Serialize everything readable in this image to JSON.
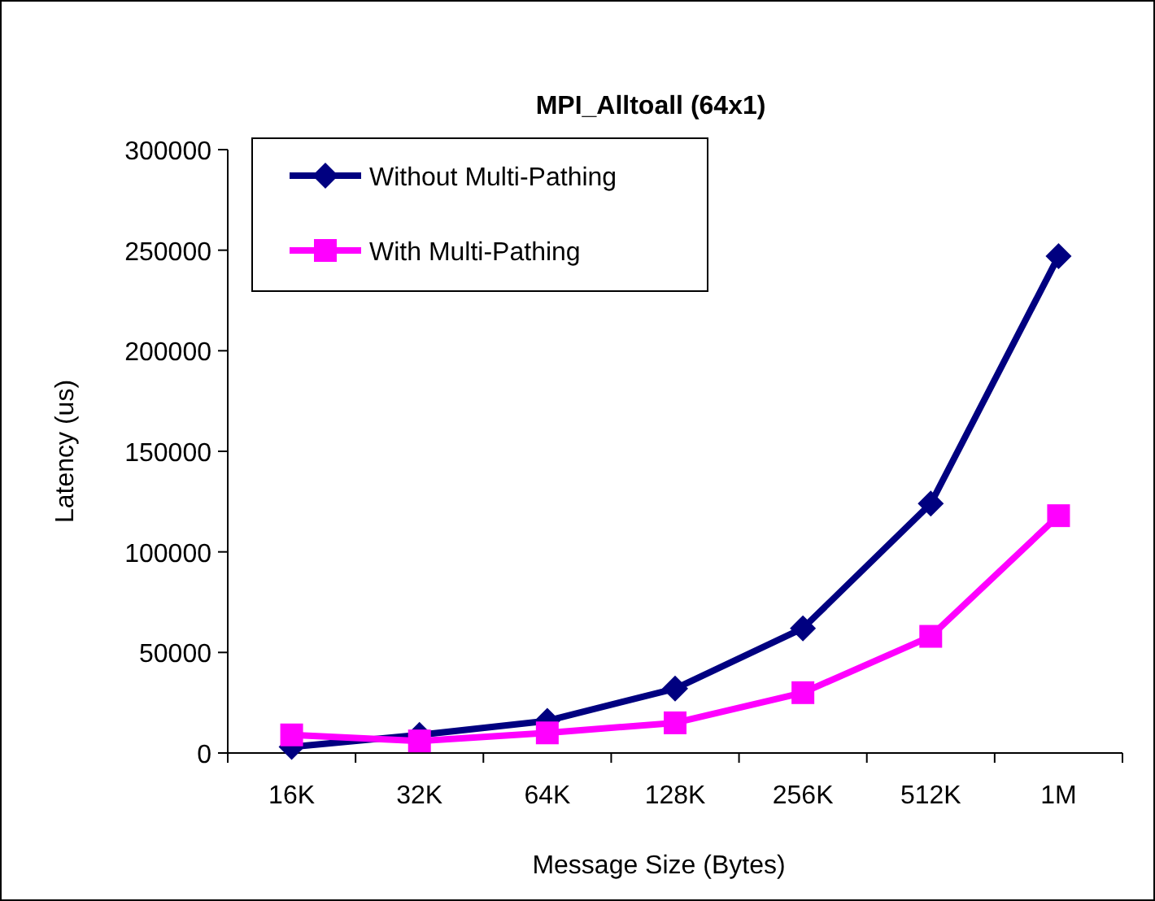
{
  "chart_data": {
    "type": "line",
    "title": "MPI_Alltoall (64x1)",
    "xlabel": "Message Size (Bytes)",
    "ylabel": "Latency (us)",
    "categories": [
      "16K",
      "32K",
      "64K",
      "128K",
      "256K",
      "512K",
      "1M"
    ],
    "series": [
      {
        "name": "Without Multi-Pathing",
        "color": "#000080",
        "marker": "diamond",
        "values": [
          3000,
          9000,
          16000,
          32000,
          62000,
          124000,
          247000
        ]
      },
      {
        "name": "With Multi-Pathing",
        "color": "#ff00ff",
        "marker": "square",
        "values": [
          9000,
          6000,
          10000,
          15000,
          30000,
          58000,
          118000
        ]
      }
    ],
    "ylim": [
      0,
      300000
    ],
    "yticks": [
      0,
      50000,
      100000,
      150000,
      200000,
      250000,
      300000
    ],
    "grid": false,
    "legend": "top left"
  }
}
